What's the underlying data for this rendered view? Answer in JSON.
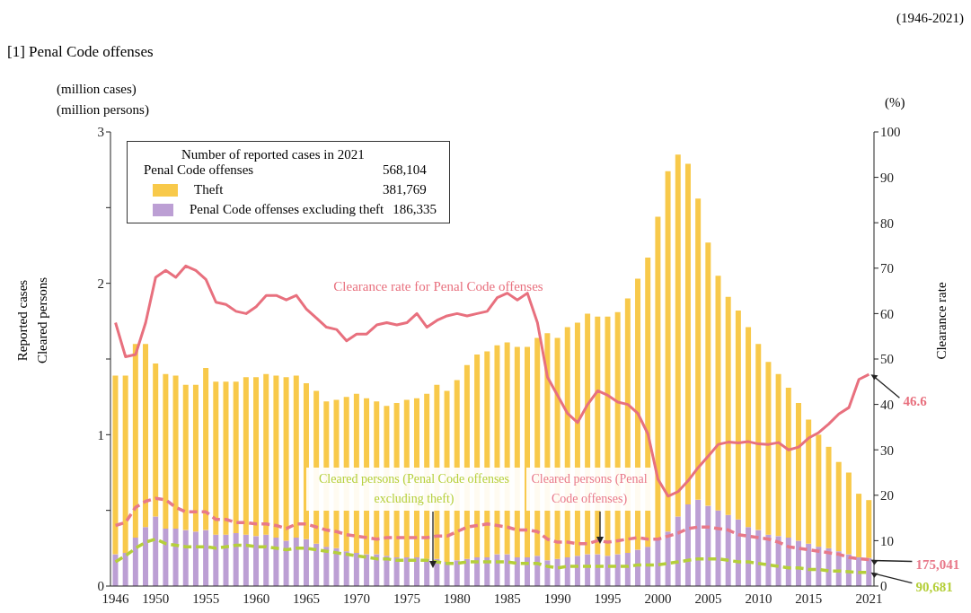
{
  "chart_data": {
    "type": "bar",
    "title": "[1] Penal Code offenses",
    "ylabel": "Reported cases\nCleared persons",
    "y2label": "Clearance rate",
    "annotations": [
      "(1946-2021)",
      "(million cases)",
      "(million persons)",
      "(%)",
      "Number of reported cases in 2021",
      "Penal Code offenses",
      "568,104",
      "381,769",
      "186,335",
      {
        "text": "175,041",
        "x": "2021",
        "y": 0.175
      },
      {
        "text": "90,681",
        "x": "2021",
        "y": 0.091
      }
    ],
    "categories": [
      "1946",
      null,
      null,
      null,
      "1950",
      null,
      null,
      null,
      null,
      "1955",
      null,
      null,
      null,
      null,
      "1960",
      null,
      null,
      null,
      null,
      "1965",
      null,
      null,
      null,
      null,
      "1970",
      null,
      null,
      null,
      null,
      "1975",
      null,
      null,
      null,
      null,
      "1980",
      null,
      null,
      null,
      null,
      "1985",
      null,
      null,
      null,
      null,
      "1990",
      null,
      null,
      null,
      null,
      "1995",
      null,
      null,
      null,
      null,
      "2000",
      null,
      null,
      null,
      null,
      "2005",
      null,
      null,
      null,
      null,
      "2010",
      null,
      null,
      null,
      null,
      "2015",
      null,
      null,
      null,
      null,
      null,
      "2021"
    ],
    "stacked": true,
    "legend": "top left",
    "marker": "none",
    "ylim": [
      0,
      3
    ],
    "yticks": [
      0,
      {
        "value": 0.5,
        "label": null
      },
      1,
      {
        "value": 1.5,
        "label": null
      },
      2,
      {
        "value": 2.5,
        "label": null
      },
      3
    ],
    "y2lim": [
      0,
      100
    ],
    "y2ticks": [
      0,
      10,
      20,
      30,
      40,
      50,
      60,
      70,
      80,
      90,
      100
    ],
    "series": [
      {
        "name": "Penal Code offenses excluding theft",
        "color": "#bc9fd4",
        "values": [
          0.21,
          0.22,
          0.32,
          0.39,
          0.46,
          0.38,
          0.38,
          0.37,
          0.36,
          0.37,
          0.34,
          0.34,
          0.35,
          0.34,
          0.33,
          0.34,
          0.32,
          0.3,
          0.32,
          0.31,
          0.28,
          0.26,
          0.25,
          0.23,
          0.22,
          0.21,
          0.21,
          0.2,
          0.19,
          0.19,
          0.19,
          0.18,
          0.18,
          0.16,
          0.17,
          0.18,
          0.19,
          0.19,
          0.21,
          0.21,
          0.19,
          0.19,
          0.2,
          0.17,
          0.18,
          0.19,
          0.2,
          0.21,
          0.21,
          0.2,
          0.21,
          0.22,
          0.24,
          0.26,
          0.32,
          0.36,
          0.46,
          0.54,
          0.57,
          0.53,
          0.5,
          0.47,
          0.44,
          0.39,
          0.37,
          0.34,
          0.33,
          0.32,
          0.3,
          0.28,
          0.26,
          0.25,
          0.23,
          0.21,
          0.19,
          0.186
        ]
      },
      {
        "name": "Theft",
        "color": "#f8c94a",
        "values": [
          1.18,
          1.17,
          1.28,
          1.21,
          1.01,
          1.02,
          1.01,
          0.96,
          0.97,
          1.07,
          1.01,
          1.01,
          1.0,
          1.04,
          1.05,
          1.06,
          1.07,
          1.08,
          1.07,
          1.03,
          1.01,
          0.96,
          0.98,
          1.02,
          1.05,
          1.03,
          1.01,
          0.99,
          1.02,
          1.04,
          1.05,
          1.09,
          1.15,
          1.13,
          1.19,
          1.28,
          1.34,
          1.36,
          1.38,
          1.4,
          1.39,
          1.39,
          1.44,
          1.5,
          1.46,
          1.52,
          1.54,
          1.59,
          1.57,
          1.58,
          1.6,
          1.68,
          1.79,
          1.91,
          2.12,
          2.38,
          2.39,
          2.25,
          1.99,
          1.74,
          1.55,
          1.44,
          1.38,
          1.32,
          1.23,
          1.14,
          1.07,
          0.99,
          0.91,
          0.82,
          0.74,
          0.67,
          0.59,
          0.54,
          0.42,
          0.382
        ]
      },
      {
        "name": "Clearance rate for Penal Code offenses",
        "type": "line",
        "axis": "y2",
        "line_style": "solid",
        "color": "#e8707e",
        "values": [
          58,
          50.5,
          51,
          58,
          68,
          69.5,
          68,
          70.5,
          69.5,
          67.5,
          62.5,
          62,
          60.5,
          60,
          61.5,
          64,
          64,
          63,
          64,
          61,
          59,
          57,
          56.5,
          54,
          55.5,
          55.5,
          57.5,
          58,
          57.5,
          58,
          60,
          57,
          58.5,
          59.5,
          60,
          59.5,
          60,
          60.5,
          63.5,
          64.5,
          63,
          64.5,
          58,
          46,
          42,
          38,
          36,
          40,
          43,
          42,
          40.5,
          40,
          38,
          33.5,
          23.5,
          19.8,
          20.8,
          23.2,
          26.1,
          28.6,
          31.2,
          31.7,
          31.5,
          31.8,
          31.3,
          31.2,
          31.6,
          30,
          30.6,
          32.6,
          33.8,
          35.7,
          37.9,
          39.3,
          45.5,
          46.6
        ],
        "value_labels": [
          null,
          null,
          null,
          null,
          null,
          null,
          null,
          null,
          null,
          null,
          null,
          null,
          null,
          null,
          null,
          null,
          null,
          null,
          null,
          null,
          null,
          null,
          null,
          null,
          null,
          null,
          null,
          null,
          null,
          null,
          null,
          null,
          null,
          null,
          null,
          null,
          null,
          null,
          null,
          null,
          null,
          null,
          null,
          null,
          null,
          null,
          null,
          null,
          null,
          null,
          null,
          null,
          null,
          null,
          null,
          null,
          null,
          null,
          null,
          null,
          null,
          null,
          null,
          null,
          null,
          null,
          null,
          null,
          null,
          null,
          null,
          null,
          null,
          null,
          null,
          "46.6"
        ]
      },
      {
        "name": "Cleared persons (Penal Code offenses)",
        "type": "line",
        "axis": "y",
        "line_style": "dashed",
        "color": "#e8798a",
        "values": [
          0.4,
          0.42,
          0.52,
          0.56,
          0.58,
          0.57,
          0.52,
          0.49,
          0.49,
          0.49,
          0.44,
          0.44,
          0.42,
          0.42,
          0.41,
          0.41,
          0.4,
          0.38,
          0.41,
          0.41,
          0.39,
          0.37,
          0.36,
          0.34,
          0.33,
          0.32,
          0.31,
          0.32,
          0.32,
          0.32,
          0.32,
          0.32,
          0.33,
          0.33,
          0.36,
          0.39,
          0.4,
          0.41,
          0.4,
          0.39,
          0.37,
          0.37,
          0.36,
          0.31,
          0.29,
          0.29,
          0.28,
          0.28,
          0.3,
          0.29,
          0.3,
          0.31,
          0.32,
          0.31,
          0.31,
          0.33,
          0.35,
          0.38,
          0.39,
          0.39,
          0.38,
          0.37,
          0.34,
          0.33,
          0.32,
          0.31,
          0.29,
          0.26,
          0.25,
          0.24,
          0.23,
          0.22,
          0.21,
          0.19,
          0.18,
          0.175
        ]
      },
      {
        "name": "Cleared persons (Penal Code offenses excluding theft)",
        "type": "line",
        "axis": "y",
        "line_style": "dashed",
        "color": "#b5cf3a",
        "values": [
          0.16,
          0.2,
          0.25,
          0.29,
          0.31,
          0.28,
          0.27,
          0.26,
          0.26,
          0.26,
          0.25,
          0.26,
          0.27,
          0.27,
          0.26,
          0.26,
          0.25,
          0.24,
          0.25,
          0.25,
          0.24,
          0.23,
          0.22,
          0.21,
          0.2,
          0.19,
          0.18,
          0.18,
          0.17,
          0.17,
          0.17,
          0.17,
          0.16,
          0.15,
          0.15,
          0.16,
          0.16,
          0.16,
          0.16,
          0.16,
          0.15,
          0.15,
          0.15,
          0.13,
          0.12,
          0.13,
          0.13,
          0.13,
          0.13,
          0.13,
          0.13,
          0.13,
          0.14,
          0.14,
          0.14,
          0.15,
          0.16,
          0.17,
          0.18,
          0.18,
          0.18,
          0.17,
          0.16,
          0.16,
          0.15,
          0.14,
          0.13,
          0.12,
          0.12,
          0.11,
          0.11,
          0.1,
          0.1,
          0.095,
          0.09,
          0.091
        ]
      }
    ]
  }
}
